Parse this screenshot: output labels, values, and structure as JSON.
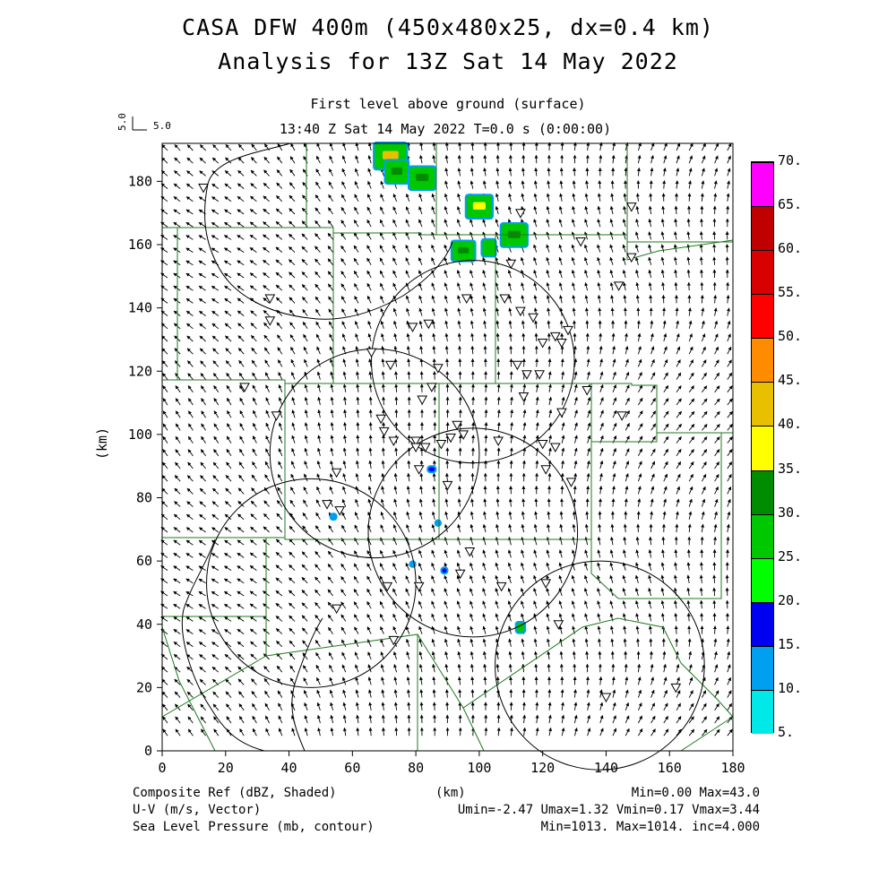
{
  "title_line1": "CASA DFW 400m (450x480x25, dx=0.4 km)",
  "title_line2": "Analysis for 13Z Sat 14 May 2022",
  "level_label": "First level above ground (surface)",
  "time_label": "13:40 Z Sat 14 May 2022    T=0.0 s (0:00:00)",
  "vector_ref": {
    "vertical": "5.0",
    "horizontal": "5.0"
  },
  "map": {
    "x_axis_label": "(km)",
    "y_axis_label": "(km)",
    "x_range": [
      0,
      180
    ],
    "y_range": [
      0,
      192
    ],
    "x_ticks": [
      "0",
      "20",
      "40",
      "60",
      "80",
      "100",
      "120",
      "140",
      "160",
      "180"
    ],
    "y_ticks": [
      "0",
      "20",
      "40",
      "60",
      "80",
      "100",
      "120",
      "140",
      "160",
      "180"
    ],
    "range_rings": [
      {
        "cx": 98,
        "cy": 123,
        "r": 32
      },
      {
        "cx": 67,
        "cy": 94,
        "r": 33
      },
      {
        "cx": 98,
        "cy": 69,
        "r": 33
      },
      {
        "cx": 47,
        "cy": 53,
        "r": 33
      },
      {
        "cx": 138,
        "cy": 27,
        "r": 33
      }
    ],
    "station_markers": [
      [
        13,
        178
      ],
      [
        34,
        143
      ],
      [
        34,
        136
      ],
      [
        26,
        115
      ],
      [
        36,
        106
      ],
      [
        66,
        126
      ],
      [
        72,
        122
      ],
      [
        84,
        135
      ],
      [
        79,
        134
      ],
      [
        87,
        121
      ],
      [
        85,
        115
      ],
      [
        82,
        111
      ],
      [
        69,
        105
      ],
      [
        70,
        101
      ],
      [
        73,
        98
      ],
      [
        80,
        98
      ],
      [
        80,
        96
      ],
      [
        83,
        96
      ],
      [
        88,
        97
      ],
      [
        91,
        99
      ],
      [
        93,
        103
      ],
      [
        95,
        100
      ],
      [
        81,
        89
      ],
      [
        106,
        98
      ],
      [
        96,
        143
      ],
      [
        110,
        154
      ],
      [
        108,
        143
      ],
      [
        113,
        139
      ],
      [
        117,
        137
      ],
      [
        120,
        129
      ],
      [
        124,
        131
      ],
      [
        126,
        129
      ],
      [
        128,
        133
      ],
      [
        112,
        122
      ],
      [
        115,
        119
      ],
      [
        119,
        119
      ],
      [
        114,
        112
      ],
      [
        126,
        107
      ],
      [
        120,
        97
      ],
      [
        124,
        96
      ],
      [
        121,
        89
      ],
      [
        129,
        85
      ],
      [
        134,
        114
      ],
      [
        145,
        106
      ],
      [
        144,
        147
      ],
      [
        148,
        172
      ],
      [
        113,
        170
      ],
      [
        132,
        161
      ],
      [
        148,
        156
      ],
      [
        55,
        88
      ],
      [
        52,
        78
      ],
      [
        56,
        76
      ],
      [
        90,
        84
      ],
      [
        55,
        45
      ],
      [
        71,
        52
      ],
      [
        81,
        52
      ],
      [
        94,
        56
      ],
      [
        97,
        63
      ],
      [
        107,
        52
      ],
      [
        121,
        53
      ],
      [
        125,
        40
      ],
      [
        73,
        35
      ],
      [
        140,
        17
      ],
      [
        162,
        20
      ]
    ],
    "reflectivity_cells": [
      {
        "x": 72,
        "y": 188,
        "w": 10,
        "h": 8,
        "dbz": 28,
        "core": 40
      },
      {
        "x": 74,
        "y": 183,
        "w": 7,
        "h": 7,
        "dbz": 28,
        "core": 32
      },
      {
        "x": 82,
        "y": 181,
        "w": 8,
        "h": 7,
        "dbz": 28,
        "core": 32
      },
      {
        "x": 100,
        "y": 172,
        "w": 8,
        "h": 7,
        "dbz": 28,
        "core": 38
      },
      {
        "x": 95,
        "y": 158,
        "w": 7,
        "h": 6,
        "dbz": 28,
        "core": 32
      },
      {
        "x": 103,
        "y": 159,
        "w": 4,
        "h": 5,
        "dbz": 25,
        "core": 28
      },
      {
        "x": 111,
        "y": 163,
        "w": 8,
        "h": 7,
        "dbz": 28,
        "core": 32
      },
      {
        "x": 85,
        "y": 89,
        "w": 2,
        "h": 1.4,
        "dbz": 15,
        "core": 15
      },
      {
        "x": 54,
        "y": 74,
        "w": 1.4,
        "h": 1.4,
        "dbz": 12,
        "core": 12
      },
      {
        "x": 87,
        "y": 72,
        "w": 1.2,
        "h": 1.2,
        "dbz": 10,
        "core": 10
      },
      {
        "x": 79,
        "y": 59,
        "w": 1.2,
        "h": 1.2,
        "dbz": 12,
        "core": 12
      },
      {
        "x": 89,
        "y": 57,
        "w": 1.4,
        "h": 1.4,
        "dbz": 15,
        "core": 15
      },
      {
        "x": 113,
        "y": 39,
        "w": 2.4,
        "h": 3,
        "dbz": 25,
        "core": 28
      }
    ]
  },
  "colorbar": {
    "labels": [
      "5.",
      "10.",
      "15.",
      "20.",
      "25.",
      "30.",
      "35.",
      "40.",
      "45.",
      "50.",
      "55.",
      "60.",
      "65.",
      "70."
    ],
    "colors": [
      "#00e8e8",
      "#009ff0",
      "#0000f0",
      "#00ff00",
      "#00c800",
      "#008c00",
      "#ffff00",
      "#e8c000",
      "#ff8c00",
      "#ff0000",
      "#d80000",
      "#c00000",
      "#ff00ff"
    ]
  },
  "footer": {
    "left1": "Composite Ref (dBZ, Shaded)",
    "left2": "U-V (m/s, Vector)",
    "left3": "Sea Level Pressure (mb, contour)",
    "center": "(km)",
    "right1": "Min=0.00 Max=43.0",
    "right2": "Umin=-2.47 Umax=1.32 Vmin=0.17 Vmax=3.44",
    "right3": "Min=1013. Max=1014. inc=4.000"
  }
}
